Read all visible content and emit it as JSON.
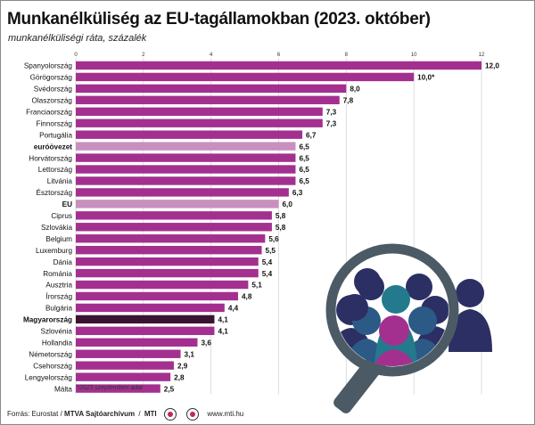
{
  "title": "Munkanélküliség az EU-tagállamokban (2023. október)",
  "subtitle": "munkanélküliségi ráta, százalék",
  "footnote": "*2023 szeptemberi adat",
  "footer": {
    "source_prefix": "Forrás: Eurostat /",
    "archive": "MTVA Sajtóarchívum",
    "mti": "MTI",
    "website": "www.mti.hu"
  },
  "colors": {
    "bar": "#a3308f",
    "eu_bar": "#c98fbf",
    "hungary_bar": "#3b1432",
    "magnifier_ring": "#4b5a64",
    "people_dark": "#2b2f63",
    "people_blue": "#2c5a86",
    "people_teal": "#237a8c",
    "people_magenta": "#a3308f"
  },
  "chart_data": {
    "type": "bar",
    "orientation": "horizontal",
    "xlim": [
      0,
      12
    ],
    "ticks": [
      0,
      2,
      4,
      6,
      8,
      10,
      12
    ],
    "categories": [
      "Spanyolország",
      "Görögország",
      "Svédország",
      "Olaszország",
      "Franciaország",
      "Finnország",
      "Portugália",
      "euróövezet",
      "Horvátország",
      "Lettország",
      "Litvánia",
      "Észtország",
      "EU",
      "Ciprus",
      "Szlovákia",
      "Belgium",
      "Luxemburg",
      "Dánia",
      "Románia",
      "Ausztria",
      "Írország",
      "Bulgária",
      "Magyarország",
      "Szlovénia",
      "Hollandia",
      "Németország",
      "Csehország",
      "Lengyelország",
      "Málta"
    ],
    "values": [
      12.0,
      10.0,
      8.0,
      7.8,
      7.3,
      7.3,
      6.7,
      6.5,
      6.5,
      6.5,
      6.5,
      6.3,
      6.0,
      5.8,
      5.8,
      5.6,
      5.5,
      5.4,
      5.4,
      5.1,
      4.8,
      4.4,
      4.1,
      4.1,
      3.6,
      3.1,
      2.9,
      2.8,
      2.5
    ],
    "value_labels": [
      "12,0",
      "10,0*",
      "8,0",
      "7,8",
      "7,3",
      "7,3",
      "6,7",
      "6,5",
      "6,5",
      "6,5",
      "6,5",
      "6,3",
      "6,0",
      "5,8",
      "5,8",
      "5,6",
      "5,5",
      "5,4",
      "5,4",
      "5,1",
      "4,8",
      "4,4",
      "4,1",
      "4,1",
      "3,6",
      "3,1",
      "2,9",
      "2,8",
      "2,5"
    ],
    "highlight": {
      "euróövezet": "eu",
      "EU": "eu",
      "Magyarország": "hungary"
    },
    "grid": true
  }
}
